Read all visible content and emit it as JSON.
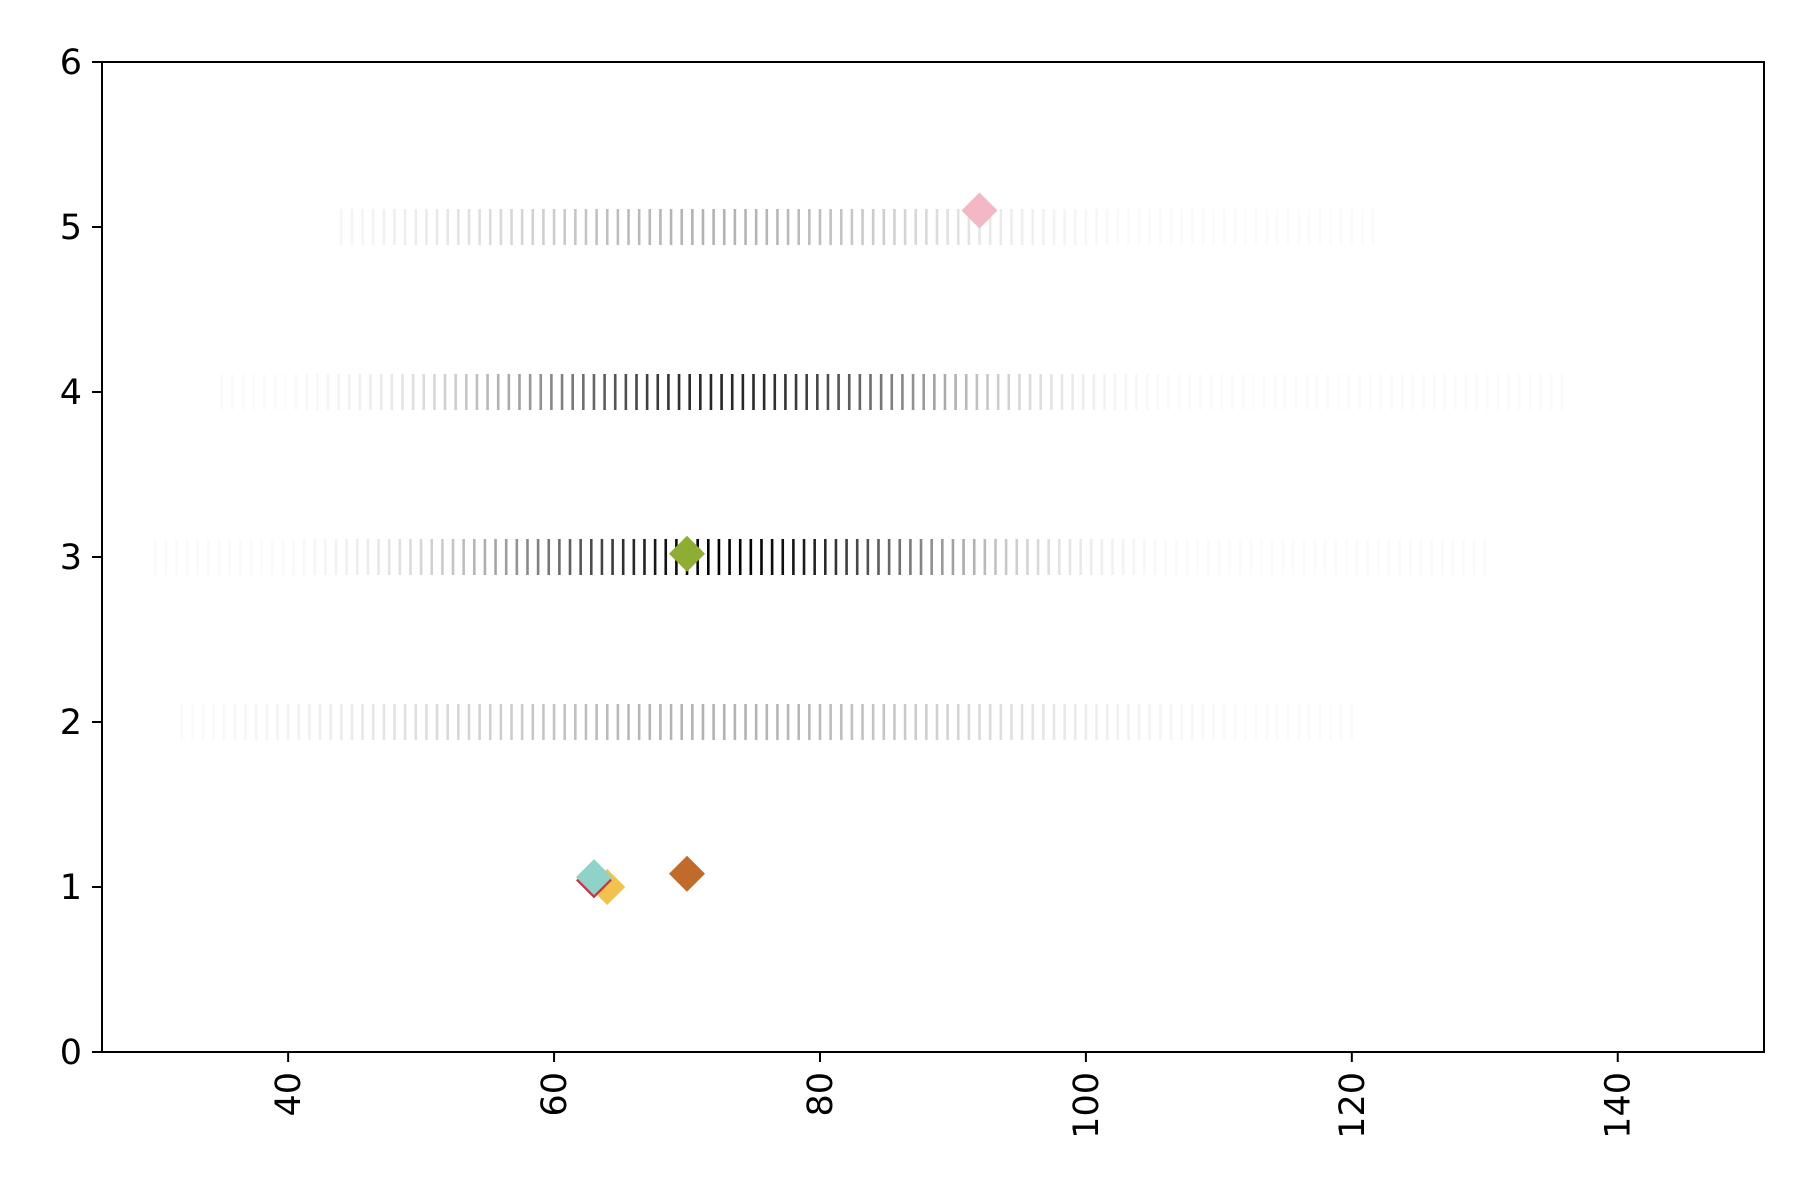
{
  "chart_data": {
    "type": "scatter",
    "title": "",
    "xlabel": "",
    "ylabel": "",
    "xlim": [
      26,
      151
    ],
    "ylim": [
      0,
      6
    ],
    "x_ticks": [
      40,
      60,
      80,
      100,
      120,
      140
    ],
    "y_ticks": [
      0,
      1,
      2,
      3,
      4,
      5,
      6
    ],
    "x_tick_rotation": "vertical",
    "grid": false,
    "legend": "none",
    "background_rows": [
      {
        "y": 2,
        "x_min": 32,
        "x_max": 120,
        "peak_x": 72,
        "spread": 24,
        "max_opacity": 0.3
      },
      {
        "y": 3,
        "x_min": 30,
        "x_max": 130,
        "peak_x": 73,
        "spread": 17,
        "max_opacity": 1.0
      },
      {
        "y": 4,
        "x_min": 35,
        "x_max": 136,
        "peak_x": 73,
        "spread": 17,
        "max_opacity": 0.85
      },
      {
        "y": 5,
        "x_min": 44,
        "x_max": 122,
        "peak_x": 72,
        "spread": 19,
        "max_opacity": 0.3
      }
    ],
    "background_color": "#000000",
    "highlight_points": [
      {
        "x": 64,
        "y": 1.0,
        "color": "#f2c14e"
      },
      {
        "x": 63,
        "y": 1.04,
        "color": "#c7354a"
      },
      {
        "x": 63,
        "y": 1.06,
        "color": "#8fd3c8"
      },
      {
        "x": 70,
        "y": 1.08,
        "color": "#c06a2b"
      },
      {
        "x": 70,
        "y": 3.02,
        "color": "#8fad35"
      },
      {
        "x": 92,
        "y": 5.1,
        "color": "#f2b8c4"
      }
    ],
    "marker": "diamond"
  }
}
